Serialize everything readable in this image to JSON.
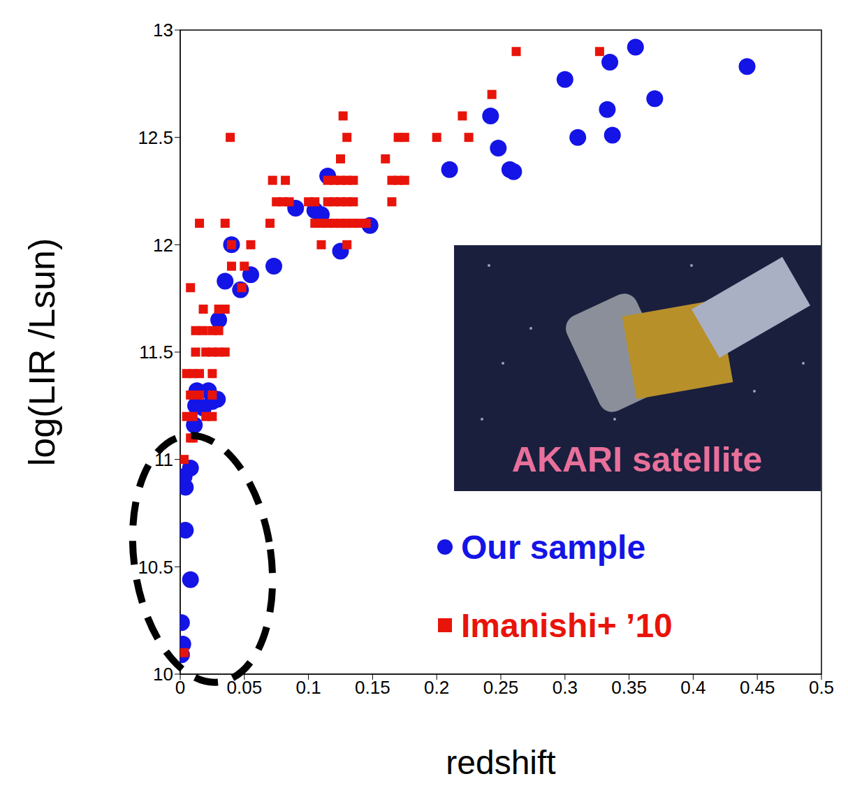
{
  "chart_data": {
    "type": "scatter",
    "xlabel": "redshift",
    "ylabel": "log(LIR /Lsun)",
    "annotations": [
      "AKARI satellite"
    ],
    "xlim": [
      0,
      0.5
    ],
    "xticks": [
      0,
      0.05,
      0.1,
      0.15,
      0.2,
      0.25,
      0.3,
      0.35,
      0.4,
      0.45,
      0.5
    ],
    "ylim": [
      10,
      13
    ],
    "yticks": [
      10,
      10.5,
      11,
      11.5,
      12,
      12.5,
      13
    ],
    "legend": "lower right",
    "series": [
      {
        "name": "Our sample",
        "color": "#1414e6",
        "marker": "circle",
        "x": [
          0.001,
          0.002,
          0.001,
          0.008,
          0.004,
          0.004,
          0.003,
          0.008,
          0.011,
          0.012,
          0.013,
          0.018,
          0.022,
          0.025,
          0.029,
          0.03,
          0.035,
          0.04,
          0.047,
          0.055,
          0.073,
          0.09,
          0.105,
          0.11,
          0.115,
          0.125,
          0.148,
          0.21,
          0.242,
          0.248,
          0.257,
          0.26,
          0.3,
          0.31,
          0.333,
          0.335,
          0.337,
          0.355,
          0.37,
          0.442
        ],
        "values": [
          10.09,
          10.14,
          10.24,
          10.44,
          10.67,
          10.87,
          10.92,
          10.96,
          11.16,
          11.25,
          11.32,
          11.24,
          11.32,
          11.27,
          11.28,
          11.65,
          11.83,
          12.0,
          11.79,
          11.86,
          11.9,
          12.17,
          12.16,
          12.14,
          12.32,
          11.97,
          12.09,
          12.35,
          12.6,
          12.45,
          12.35,
          12.34,
          12.77,
          12.5,
          12.63,
          12.85,
          12.51,
          12.92,
          12.68,
          12.83
        ]
      },
      {
        "name": "Imanishi+ ’10",
        "color": "#e8140a",
        "marker": "square",
        "x": [
          0.003,
          0.003,
          0.008,
          0.01,
          0.005,
          0.01,
          0.02,
          0.025,
          0.008,
          0.015,
          0.025,
          0.005,
          0.01,
          0.015,
          0.025,
          0.012,
          0.02,
          0.025,
          0.03,
          0.035,
          0.012,
          0.018,
          0.025,
          0.03,
          0.018,
          0.03,
          0.035,
          0.008,
          0.048,
          0.04,
          0.05,
          0.015,
          0.035,
          0.04,
          0.055,
          0.07,
          0.075,
          0.08,
          0.085,
          0.072,
          0.082,
          0.039,
          0.1,
          0.105,
          0.11,
          0.115,
          0.12,
          0.125,
          0.13,
          0.135,
          0.14,
          0.145,
          0.105,
          0.115,
          0.12,
          0.125,
          0.13,
          0.135,
          0.11,
          0.13,
          0.115,
          0.12,
          0.125,
          0.13,
          0.135,
          0.125,
          0.13,
          0.127,
          0.16,
          0.165,
          0.17,
          0.175,
          0.165,
          0.17,
          0.175,
          0.2,
          0.22,
          0.225,
          0.243,
          0.262,
          0.327
        ],
        "values": [
          10.1,
          11.0,
          11.1,
          11.1,
          11.2,
          11.2,
          11.2,
          11.2,
          11.3,
          11.3,
          11.3,
          11.4,
          11.4,
          11.4,
          11.4,
          11.5,
          11.5,
          11.5,
          11.5,
          11.5,
          11.6,
          11.6,
          11.6,
          11.6,
          11.7,
          11.7,
          11.7,
          11.8,
          11.8,
          11.9,
          11.9,
          12.1,
          12.1,
          12.0,
          12.0,
          12.1,
          12.2,
          12.2,
          12.2,
          12.3,
          12.3,
          12.5,
          12.2,
          12.1,
          12.1,
          12.1,
          12.1,
          12.1,
          12.1,
          12.1,
          12.1,
          12.1,
          12.2,
          12.2,
          12.2,
          12.2,
          12.2,
          12.2,
          12.0,
          12.0,
          12.3,
          12.3,
          12.3,
          12.3,
          12.3,
          12.4,
          12.5,
          12.6,
          12.4,
          12.3,
          12.3,
          12.3,
          12.2,
          12.5,
          12.5,
          12.5,
          12.6,
          12.5,
          12.7,
          12.9,
          12.9
        ]
      }
    ]
  }
}
